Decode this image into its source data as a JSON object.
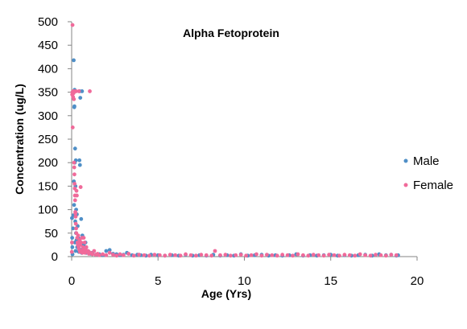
{
  "chart_data": {
    "type": "scatter",
    "title": "Alpha Fetoprotein",
    "xlabel": "Age (Yrs)",
    "ylabel": "Concentration (ug/L)",
    "xlim": [
      0,
      20
    ],
    "ylim": [
      0,
      500
    ],
    "x_ticks": [
      "0",
      "5",
      "10",
      "15",
      "20"
    ],
    "y_ticks": [
      "0",
      "50",
      "100",
      "150",
      "200",
      "250",
      "300",
      "350",
      "400",
      "450",
      "500"
    ],
    "grid": false,
    "legend_position": "right",
    "series": [
      {
        "name": "Male",
        "color": "#4f8fc7",
        "points": [
          [
            0.02,
            82
          ],
          [
            0.03,
            40
          ],
          [
            0.04,
            20
          ],
          [
            0.05,
            5
          ],
          [
            0.07,
            350
          ],
          [
            0.08,
            60
          ],
          [
            0.1,
            88
          ],
          [
            0.12,
            418
          ],
          [
            0.13,
            160
          ],
          [
            0.14,
            110
          ],
          [
            0.15,
            318
          ],
          [
            0.16,
            320
          ],
          [
            0.17,
            355
          ],
          [
            0.18,
            200
          ],
          [
            0.19,
            30
          ],
          [
            0.2,
            230
          ],
          [
            0.21,
            75
          ],
          [
            0.22,
            150
          ],
          [
            0.23,
            12
          ],
          [
            0.24,
            205
          ],
          [
            0.25,
            50
          ],
          [
            0.26,
            100
          ],
          [
            0.28,
            35
          ],
          [
            0.3,
            90
          ],
          [
            0.32,
            20
          ],
          [
            0.35,
            65
          ],
          [
            0.38,
            40
          ],
          [
            0.4,
            25
          ],
          [
            0.42,
            10
          ],
          [
            0.45,
            205
          ],
          [
            0.46,
            352
          ],
          [
            0.47,
            15
          ],
          [
            0.48,
            195
          ],
          [
            0.5,
            338
          ],
          [
            0.52,
            30
          ],
          [
            0.55,
            80
          ],
          [
            0.58,
            8
          ],
          [
            0.6,
            352
          ],
          [
            0.62,
            45
          ],
          [
            0.65,
            15
          ],
          [
            0.7,
            25
          ],
          [
            0.75,
            12
          ],
          [
            0.8,
            30
          ],
          [
            0.85,
            8
          ],
          [
            0.9,
            12
          ],
          [
            1.0,
            10
          ],
          [
            1.1,
            6
          ],
          [
            1.2,
            8
          ],
          [
            1.4,
            4
          ],
          [
            1.6,
            5
          ],
          [
            1.8,
            3
          ],
          [
            2.0,
            12
          ],
          [
            2.2,
            14
          ],
          [
            2.4,
            6
          ],
          [
            2.6,
            5
          ],
          [
            2.8,
            3
          ],
          [
            3.0,
            4
          ],
          [
            3.2,
            8
          ],
          [
            3.5,
            3
          ],
          [
            3.8,
            4
          ],
          [
            4.0,
            3
          ],
          [
            4.3,
            2
          ],
          [
            4.6,
            4
          ],
          [
            5.0,
            3
          ],
          [
            5.4,
            2
          ],
          [
            5.8,
            3
          ],
          [
            6.2,
            2
          ],
          [
            6.6,
            4
          ],
          [
            7.0,
            2
          ],
          [
            7.4,
            3
          ],
          [
            7.8,
            2
          ],
          [
            8.2,
            4
          ],
          [
            8.6,
            2
          ],
          [
            9.0,
            3
          ],
          [
            9.4,
            2
          ],
          [
            9.8,
            5
          ],
          [
            10.2,
            2
          ],
          [
            10.6,
            3
          ],
          [
            11.0,
            4
          ],
          [
            11.4,
            2
          ],
          [
            11.8,
            3
          ],
          [
            12.2,
            2
          ],
          [
            12.6,
            3
          ],
          [
            13.0,
            5
          ],
          [
            13.4,
            2
          ],
          [
            13.8,
            3
          ],
          [
            14.2,
            2
          ],
          [
            14.6,
            3
          ],
          [
            15.0,
            4
          ],
          [
            15.4,
            2
          ],
          [
            15.8,
            3
          ],
          [
            16.2,
            2
          ],
          [
            16.6,
            3
          ],
          [
            17.0,
            4
          ],
          [
            17.4,
            2
          ],
          [
            17.8,
            5
          ],
          [
            18.2,
            3
          ],
          [
            18.5,
            4
          ],
          [
            18.8,
            2
          ],
          [
            18.9,
            3
          ]
        ]
      },
      {
        "name": "Female",
        "color": "#f06a9a",
        "points": [
          [
            0.01,
            10
          ],
          [
            0.02,
            30
          ],
          [
            0.03,
            345
          ],
          [
            0.04,
            350
          ],
          [
            0.05,
            493
          ],
          [
            0.06,
            275
          ],
          [
            0.07,
            350
          ],
          [
            0.08,
            340
          ],
          [
            0.1,
            352
          ],
          [
            0.11,
            348
          ],
          [
            0.12,
            352
          ],
          [
            0.13,
            335
          ],
          [
            0.14,
            200
          ],
          [
            0.15,
            190
          ],
          [
            0.16,
            175
          ],
          [
            0.17,
            155
          ],
          [
            0.18,
            145
          ],
          [
            0.19,
            130
          ],
          [
            0.2,
            120
          ],
          [
            0.21,
            95
          ],
          [
            0.22,
            92
          ],
          [
            0.23,
            85
          ],
          [
            0.24,
            70
          ],
          [
            0.25,
            352
          ],
          [
            0.26,
            60
          ],
          [
            0.27,
            50
          ],
          [
            0.28,
            140
          ],
          [
            0.3,
            130
          ],
          [
            0.32,
            40
          ],
          [
            0.34,
            30
          ],
          [
            0.36,
            25
          ],
          [
            0.38,
            45
          ],
          [
            0.4,
            20
          ],
          [
            0.42,
            352
          ],
          [
            0.44,
            15
          ],
          [
            0.46,
            35
          ],
          [
            0.48,
            10
          ],
          [
            0.5,
            25
          ],
          [
            0.52,
            148
          ],
          [
            0.55,
            30
          ],
          [
            0.58,
            12
          ],
          [
            0.6,
            40
          ],
          [
            0.62,
            8
          ],
          [
            0.65,
            20
          ],
          [
            0.68,
            15
          ],
          [
            0.7,
            40
          ],
          [
            0.72,
            10
          ],
          [
            0.75,
            30
          ],
          [
            0.78,
            8
          ],
          [
            0.8,
            15
          ],
          [
            0.85,
            20
          ],
          [
            0.9,
            10
          ],
          [
            0.95,
            12
          ],
          [
            1.0,
            6
          ],
          [
            1.05,
            352
          ],
          [
            1.1,
            8
          ],
          [
            1.2,
            5
          ],
          [
            1.3,
            12
          ],
          [
            1.4,
            4
          ],
          [
            1.5,
            6
          ],
          [
            1.6,
            3
          ],
          [
            1.8,
            5
          ],
          [
            2.0,
            3
          ],
          [
            2.2,
            8
          ],
          [
            2.4,
            4
          ],
          [
            2.6,
            2
          ],
          [
            2.8,
            5
          ],
          [
            3.0,
            3
          ],
          [
            3.3,
            6
          ],
          [
            3.6,
            2
          ],
          [
            3.9,
            4
          ],
          [
            4.2,
            3
          ],
          [
            4.5,
            2
          ],
          [
            4.8,
            4
          ],
          [
            5.1,
            3
          ],
          [
            5.4,
            2
          ],
          [
            5.7,
            4
          ],
          [
            6.0,
            3
          ],
          [
            6.3,
            2
          ],
          [
            6.6,
            5
          ],
          [
            6.9,
            3
          ],
          [
            7.2,
            2
          ],
          [
            7.5,
            4
          ],
          [
            7.8,
            3
          ],
          [
            8.1,
            2
          ],
          [
            8.3,
            12
          ],
          [
            8.6,
            3
          ],
          [
            8.9,
            4
          ],
          [
            9.2,
            2
          ],
          [
            9.5,
            3
          ],
          [
            9.8,
            4
          ],
          [
            10.1,
            2
          ],
          [
            10.4,
            3
          ],
          [
            10.7,
            5
          ],
          [
            11.0,
            2
          ],
          [
            11.3,
            4
          ],
          [
            11.6,
            3
          ],
          [
            11.9,
            2
          ],
          [
            12.2,
            4
          ],
          [
            12.5,
            3
          ],
          [
            12.8,
            2
          ],
          [
            13.1,
            5
          ],
          [
            13.4,
            3
          ],
          [
            13.7,
            2
          ],
          [
            14.0,
            4
          ],
          [
            14.3,
            3
          ],
          [
            14.6,
            2
          ],
          [
            14.9,
            4
          ],
          [
            15.2,
            3
          ],
          [
            15.5,
            2
          ],
          [
            15.8,
            4
          ],
          [
            16.1,
            3
          ],
          [
            16.4,
            2
          ],
          [
            16.7,
            5
          ],
          [
            17.0,
            3
          ],
          [
            17.3,
            2
          ],
          [
            17.6,
            4
          ],
          [
            17.9,
            3
          ],
          [
            18.2,
            2
          ],
          [
            18.5,
            4
          ],
          [
            18.8,
            3
          ]
        ]
      }
    ]
  }
}
